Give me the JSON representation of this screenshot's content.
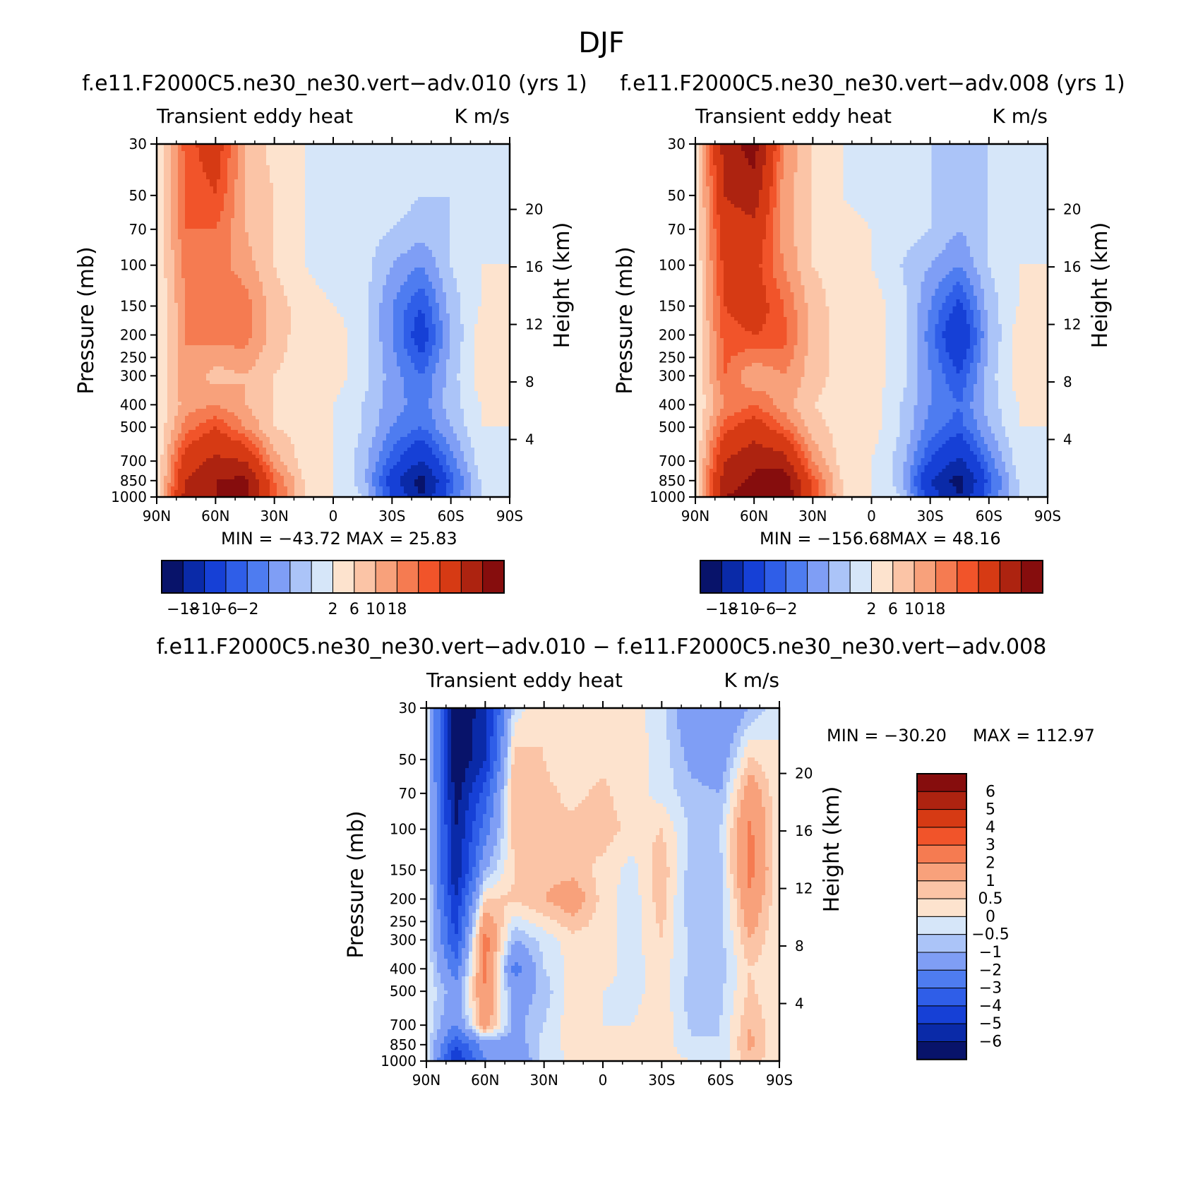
{
  "figure": {
    "title": "DJF"
  },
  "shared": {
    "yticks": [
      30,
      50,
      70,
      100,
      150,
      200,
      250,
      300,
      400,
      500,
      700,
      850,
      1000
    ],
    "xticks": [
      "90N",
      "60N",
      "30N",
      "0",
      "30S",
      "60S",
      "90S"
    ],
    "height_ticks": [
      4,
      8,
      12,
      16,
      20
    ],
    "ylabel": "Pressure (mb)",
    "ylabel2": "Height (km)",
    "left_text": "Transient eddy heat",
    "right_text": "K m/s"
  },
  "colorbars": {
    "top": {
      "colors": [
        "#08136a",
        "#0a2aa8",
        "#1640d6",
        "#2f5ee8",
        "#4e7cf0",
        "#7f9ef5",
        "#abc4f8",
        "#d6e6f9",
        "#fde3ce",
        "#fbc4a6",
        "#f8a17b",
        "#f57b51",
        "#f1542a",
        "#d63a14",
        "#ad2310",
        "#860d0d"
      ],
      "label_positions": [
        1,
        2,
        3,
        4,
        8,
        9,
        10,
        11
      ],
      "labels": [
        "−18",
        "−10",
        "−6",
        "−2",
        "2",
        "6",
        "10",
        "18"
      ]
    },
    "diff": {
      "colors_top_to_bottom": [
        "#860d0d",
        "#ad2310",
        "#d63a14",
        "#f1542a",
        "#f57b51",
        "#f8a17b",
        "#fbc4a6",
        "#fde3ce",
        "#d6e6f9",
        "#abc4f8",
        "#7f9ef5",
        "#4e7cf0",
        "#2f5ee8",
        "#1640d6",
        "#0a2aa8",
        "#08136a"
      ],
      "labels": [
        "6",
        "5",
        "4",
        "3",
        "2",
        "1",
        "0.5",
        "0",
        "−0.5",
        "−1",
        "−2",
        "−3",
        "−4",
        "−5",
        "−6"
      ]
    }
  },
  "panels": [
    {
      "title": "f.e11.F2000C5.ne30_ne30.vert−adv.010 (yrs 1)",
      "min_text": "MIN = −43.72",
      "max_text": "MAX = 25.83"
    },
    {
      "title": "f.e11.F2000C5.ne30_ne30.vert−adv.008 (yrs 1)",
      "min_text": "MIN = −156.68",
      "max_text": "MAX = 48.16"
    },
    {
      "title": "f.e11.F2000C5.ne30_ne30.vert−adv.010 − f.e11.F2000C5.ne30_ne30.vert−adv.008",
      "min_text": "MIN = −30.20",
      "max_text": "MAX = 112.97"
    }
  ],
  "chart_data": [
    {
      "type": "heatmap",
      "title": "f.e11.F2000C5.ne30_ne30.vert−adv.010 (yrs 1)",
      "subtitle_left": "Transient eddy heat",
      "subtitle_right": "K m/s",
      "xlabel": "",
      "ylabel": "Pressure (mb)",
      "ylabel_right": "Height (km)",
      "xlim": [
        90,
        -90
      ],
      "ylim": [
        1000,
        30
      ],
      "yscale": "log",
      "levels": [
        -18,
        -14,
        -10,
        -8,
        -6,
        -4,
        -2,
        0,
        2,
        4,
        6,
        8,
        10,
        14,
        18
      ],
      "lat": [
        90,
        75,
        60,
        45,
        30,
        15,
        0,
        -15,
        -30,
        -45,
        -60,
        -75,
        -90
      ],
      "lev": [
        1000,
        850,
        700,
        500,
        400,
        300,
        200,
        150,
        100,
        70,
        50,
        30
      ],
      "values": [
        [
          0,
          16,
          18,
          19,
          9,
          2,
          0,
          -2,
          -10,
          -18,
          -8,
          -2,
          0
        ],
        [
          0,
          14,
          18,
          19,
          8,
          2,
          0,
          -3,
          -12,
          -20,
          -9,
          -2,
          0
        ],
        [
          0,
          12,
          15,
          14,
          5,
          1,
          0,
          -3,
          -9,
          -14,
          -7,
          -1,
          0
        ],
        [
          0,
          7,
          10,
          6,
          2,
          1,
          0,
          -2,
          -6,
          -8,
          -4,
          0,
          0
        ],
        [
          0,
          5,
          6,
          4,
          2,
          1,
          0,
          -2,
          -5,
          -7,
          -3,
          0,
          0
        ],
        [
          0,
          6,
          3,
          4,
          2,
          1,
          1,
          -1,
          -5,
          -8,
          -3,
          1,
          0
        ],
        [
          0,
          6,
          7,
          7,
          3,
          1,
          1,
          -1,
          -6,
          -12,
          -4,
          1,
          0
        ],
        [
          0,
          6,
          8,
          7,
          3,
          1,
          0,
          -1,
          -6,
          -10,
          -3,
          0,
          0
        ],
        [
          0,
          7,
          7,
          5,
          2,
          0,
          -1,
          -1,
          -4,
          -6,
          -2,
          0,
          0
        ],
        [
          0,
          8,
          8,
          4,
          2,
          0,
          -1,
          -1,
          -2,
          -3,
          -2,
          -1,
          0
        ],
        [
          0,
          8,
          10,
          4,
          2,
          0,
          -1,
          0,
          -1,
          -2,
          -2,
          -1,
          0
        ],
        [
          0,
          9,
          12,
          4,
          1,
          0,
          -1,
          0,
          -1,
          -2,
          -2,
          -1,
          0
        ]
      ],
      "min": -43.72,
      "max": 25.83
    },
    {
      "type": "heatmap",
      "title": "f.e11.F2000C5.ne30_ne30.vert−adv.008 (yrs 1)",
      "subtitle_left": "Transient eddy heat",
      "subtitle_right": "K m/s",
      "xlabel": "",
      "ylabel": "Pressure (mb)",
      "ylabel_right": "Height (km)",
      "xlim": [
        90,
        -90
      ],
      "ylim": [
        1000,
        30
      ],
      "yscale": "log",
      "levels": [
        -18,
        -14,
        -10,
        -8,
        -6,
        -4,
        -2,
        0,
        2,
        4,
        6,
        8,
        10,
        14,
        18
      ],
      "lat": [
        90,
        75,
        60,
        45,
        30,
        15,
        0,
        -15,
        -30,
        -45,
        -60,
        -75,
        -90
      ],
      "lev": [
        1000,
        850,
        700,
        500,
        400,
        300,
        200,
        150,
        100,
        70,
        50,
        30
      ],
      "values": [
        [
          0,
          18,
          20,
          22,
          10,
          2,
          0,
          -2,
          -12,
          -18,
          -8,
          -2,
          0
        ],
        [
          0,
          16,
          19,
          21,
          9,
          2,
          0,
          -3,
          -14,
          -20,
          -9,
          -2,
          0
        ],
        [
          0,
          14,
          17,
          16,
          6,
          1,
          0,
          -3,
          -10,
          -15,
          -7,
          -1,
          0
        ],
        [
          0,
          9,
          12,
          8,
          3,
          1,
          1,
          -2,
          -7,
          -9,
          -4,
          0,
          0
        ],
        [
          0,
          6,
          8,
          5,
          2,
          1,
          1,
          -2,
          -6,
          -8,
          -3,
          0,
          0
        ],
        [
          0,
          8,
          4,
          6,
          3,
          1,
          1,
          -1,
          -6,
          -10,
          -3,
          1,
          0
        ],
        [
          0,
          9,
          10,
          9,
          3,
          1,
          1,
          -1,
          -7,
          -14,
          -4,
          1,
          0
        ],
        [
          0,
          10,
          12,
          8,
          3,
          1,
          1,
          -1,
          -6,
          -11,
          -3,
          0,
          0
        ],
        [
          0,
          11,
          11,
          6,
          2,
          1,
          0,
          -2,
          -4,
          -6,
          -2,
          0,
          0
        ],
        [
          0,
          12,
          13,
          5,
          2,
          1,
          0,
          -1,
          -2,
          -4,
          -2,
          -1,
          0
        ],
        [
          0,
          14,
          16,
          5,
          2,
          0,
          -1,
          -1,
          -2,
          -3,
          -2,
          -1,
          0
        ],
        [
          0,
          16,
          20,
          6,
          2,
          0,
          -1,
          -1,
          -2,
          -3,
          -2,
          -1,
          0
        ]
      ],
      "min": -156.68,
      "max": 48.16
    },
    {
      "type": "heatmap",
      "title": "f.e11.F2000C5.ne30_ne30.vert−adv.010 − f.e11.F2000C5.ne30_ne30.vert−adv.008",
      "subtitle_left": "Transient eddy heat",
      "subtitle_right": "K m/s",
      "xlabel": "",
      "ylabel": "Pressure (mb)",
      "ylabel_right": "Height (km)",
      "xlim": [
        90,
        -90
      ],
      "ylim": [
        1000,
        30
      ],
      "yscale": "log",
      "levels": [
        -6,
        -5,
        -4,
        -3,
        -2,
        -1,
        -0.5,
        0,
        0.5,
        1,
        2,
        3,
        4,
        5,
        6
      ],
      "lat": [
        90,
        75,
        60,
        45,
        30,
        15,
        0,
        -15,
        -30,
        -45,
        -60,
        -75,
        -90
      ],
      "lev": [
        1000,
        850,
        700,
        500,
        400,
        300,
        200,
        150,
        100,
        70,
        50,
        30
      ],
      "values": [
        [
          0,
          -5,
          -2,
          -2,
          -0.2,
          0.1,
          0,
          0,
          0.2,
          0,
          -0.3,
          0.8,
          0
        ],
        [
          0,
          -4,
          -1.5,
          -1.5,
          -0.3,
          0.2,
          0,
          0,
          0.3,
          -0.4,
          -0.5,
          1.2,
          0
        ],
        [
          0,
          -2,
          1.5,
          -1.2,
          -0.5,
          0.4,
          0,
          0,
          0.4,
          -0.6,
          -0.5,
          1.0,
          0
        ],
        [
          0,
          -1.5,
          2.0,
          -1.5,
          -0.8,
          0.3,
          0,
          -0.2,
          0.3,
          -0.8,
          -0.6,
          0.6,
          0
        ],
        [
          0,
          -2.5,
          2.2,
          -2.5,
          -0.5,
          0.2,
          0.2,
          -0.2,
          0.2,
          -0.6,
          -0.8,
          0.5,
          0
        ],
        [
          0,
          -4,
          2.5,
          -1.0,
          -0.3,
          0.3,
          0.2,
          -0.2,
          0.5,
          -0.6,
          -0.7,
          1.0,
          0
        ],
        [
          0,
          -5,
          0.5,
          0.6,
          1.0,
          1.5,
          0.3,
          -0.3,
          0.8,
          -1.0,
          -0.8,
          1.8,
          0
        ],
        [
          0,
          -6,
          -1.0,
          0.5,
          0.8,
          0.8,
          0.3,
          -0.2,
          0.9,
          -0.8,
          -0.6,
          2.4,
          0
        ],
        [
          0,
          -6,
          -2.5,
          0.8,
          0.5,
          0.6,
          0.8,
          0.3,
          0.5,
          -0.6,
          -0.5,
          2.2,
          0
        ],
        [
          0,
          -6.5,
          -3.5,
          1.0,
          0.6,
          0.4,
          0.6,
          0.2,
          -0.2,
          -0.8,
          -1.0,
          1.6,
          0
        ],
        [
          0,
          -7,
          -5,
          0.8,
          0.5,
          0.2,
          0.4,
          0.3,
          -0.2,
          -1.2,
          -1.5,
          0.6,
          0
        ],
        [
          0,
          -7,
          -5.5,
          -0.3,
          0.5,
          0.3,
          0.4,
          0.2,
          -0.3,
          -1.8,
          -2.0,
          -1.0,
          0
        ]
      ],
      "min": -30.2,
      "max": 112.97
    }
  ]
}
